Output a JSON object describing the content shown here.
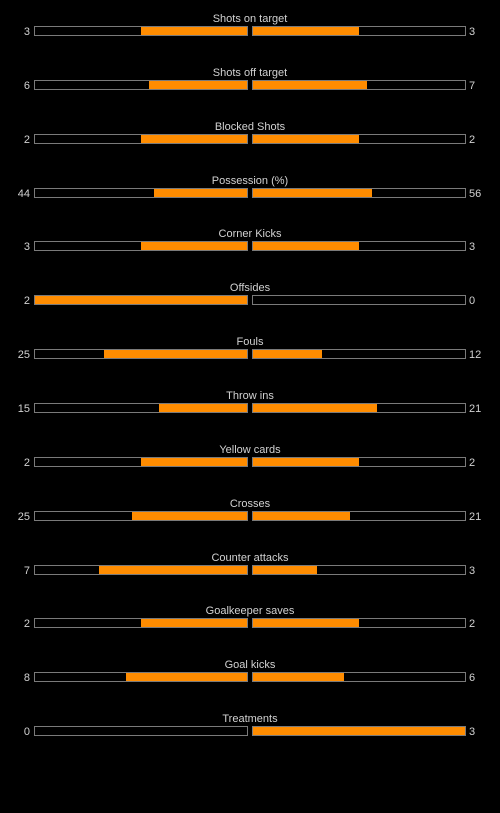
{
  "colors": {
    "fill": "#ff8c00",
    "background": "#000000",
    "border": "#7a7a7a",
    "text": "#d2d2d2"
  },
  "stats": [
    {
      "label": "Shots on target",
      "home": "3",
      "away": "3",
      "home_fill": 0.5,
      "away_fill": 0.5
    },
    {
      "label": "Shots off target",
      "home": "6",
      "away": "7",
      "home_fill": 0.462,
      "away_fill": 0.538
    },
    {
      "label": "Blocked Shots",
      "home": "2",
      "away": "2",
      "home_fill": 0.5,
      "away_fill": 0.5
    },
    {
      "label": "Possession (%)",
      "home": "44",
      "away": "56",
      "home_fill": 0.44,
      "away_fill": 0.56
    },
    {
      "label": "Corner Kicks",
      "home": "3",
      "away": "3",
      "home_fill": 0.5,
      "away_fill": 0.5
    },
    {
      "label": "Offsides",
      "home": "2",
      "away": "0",
      "home_fill": 1.0,
      "away_fill": 0.0
    },
    {
      "label": "Fouls",
      "home": "25",
      "away": "12",
      "home_fill": 0.676,
      "away_fill": 0.324
    },
    {
      "label": "Throw ins",
      "home": "15",
      "away": "21",
      "home_fill": 0.417,
      "away_fill": 0.583
    },
    {
      "label": "Yellow cards",
      "home": "2",
      "away": "2",
      "home_fill": 0.5,
      "away_fill": 0.5
    },
    {
      "label": "Crosses",
      "home": "25",
      "away": "21",
      "home_fill": 0.543,
      "away_fill": 0.457
    },
    {
      "label": "Counter attacks",
      "home": "7",
      "away": "3",
      "home_fill": 0.7,
      "away_fill": 0.3
    },
    {
      "label": "Goalkeeper saves",
      "home": "2",
      "away": "2",
      "home_fill": 0.5,
      "away_fill": 0.5
    },
    {
      "label": "Goal kicks",
      "home": "8",
      "away": "6",
      "home_fill": 0.571,
      "away_fill": 0.429
    },
    {
      "label": "Treatments",
      "home": "0",
      "away": "3",
      "home_fill": 0.0,
      "away_fill": 1.0
    }
  ]
}
